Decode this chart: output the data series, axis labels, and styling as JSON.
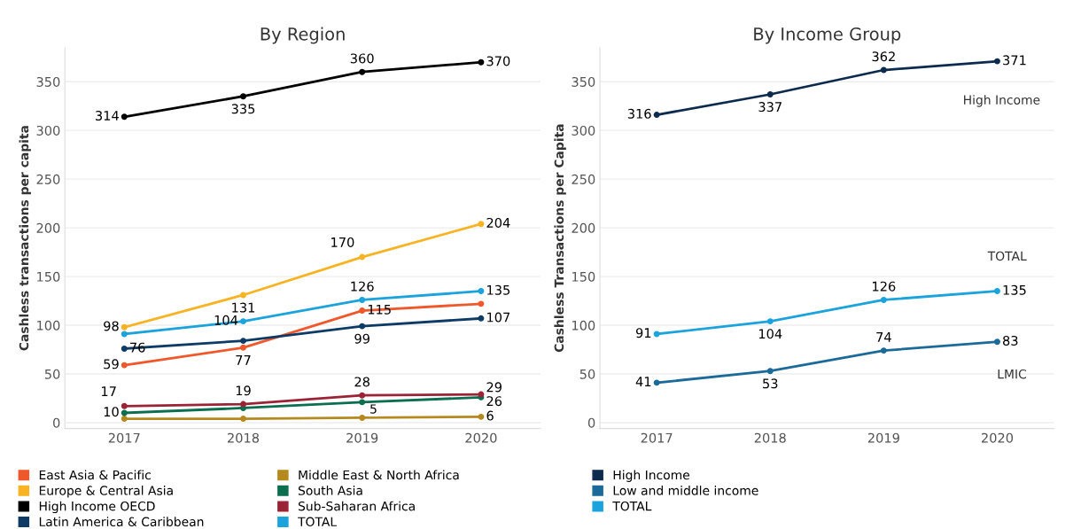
{
  "chart_data": [
    {
      "type": "line",
      "title": "By Region",
      "ylabel": "Cashless transactions per capita",
      "categories": [
        "2017",
        "2018",
        "2019",
        "2020"
      ],
      "ylim": [
        -6,
        385
      ],
      "yticks": [
        0,
        50,
        100,
        150,
        200,
        250,
        300,
        350
      ],
      "grid": "y",
      "legend": "bottom",
      "marker": "circle",
      "line_style": "solid",
      "series": [
        {
          "name": "East Asia & Pacific",
          "color": "#f0582b",
          "values": [
            59,
            77,
            115,
            122
          ],
          "value_labels": [
            "59",
            "77",
            "115",
            null
          ]
        },
        {
          "name": "Europe & Central Asia",
          "color": "#f8b323",
          "values": [
            98,
            131,
            170,
            204
          ],
          "value_labels": [
            "98",
            "131",
            "170",
            "204"
          ]
        },
        {
          "name": "High Income OECD",
          "color": "#000000",
          "values": [
            314,
            335,
            360,
            370
          ],
          "value_labels": [
            "314",
            "335",
            "360",
            "370"
          ]
        },
        {
          "name": "Latin America & Caribbean",
          "color": "#0d3b66",
          "values": [
            76,
            84,
            99,
            107
          ],
          "value_labels": [
            "76",
            null,
            "99",
            "107"
          ]
        },
        {
          "name": "Middle East & North Africa",
          "color": "#b5891e",
          "values": [
            4,
            4,
            5,
            6
          ],
          "value_labels": [
            null,
            null,
            "5",
            "6"
          ]
        },
        {
          "name": "South Asia",
          "color": "#0b6e4f",
          "values": [
            10,
            15,
            21,
            26
          ],
          "value_labels": [
            "10",
            null,
            null,
            "26"
          ]
        },
        {
          "name": "Sub-Saharan Africa",
          "color": "#9b2335",
          "values": [
            17,
            19,
            28,
            29
          ],
          "value_labels": [
            "17",
            "19",
            "28",
            "29"
          ]
        },
        {
          "name": "TOTAL",
          "color": "#1aa3dc",
          "values": [
            91,
            104,
            126,
            135
          ],
          "value_labels": [
            null,
            "104",
            "126",
            "135"
          ]
        }
      ]
    },
    {
      "type": "line",
      "title": "By Income Group",
      "ylabel": "Cashless Transactions per Capita",
      "categories": [
        "2017",
        "2018",
        "2019",
        "2020"
      ],
      "ylim": [
        -6,
        385
      ],
      "yticks": [
        0,
        50,
        100,
        150,
        200,
        250,
        300,
        350
      ],
      "grid": "y",
      "legend": "bottom",
      "marker": "circle",
      "line_style": "solid",
      "series": [
        {
          "name": "High Income",
          "color": "#0d2b4e",
          "values": [
            316,
            337,
            362,
            371
          ],
          "value_labels": [
            "316",
            "337",
            "362",
            "371"
          ]
        },
        {
          "name": "Low and middle income",
          "color": "#1b6a99",
          "values": [
            41,
            53,
            74,
            83
          ],
          "value_labels": [
            "41",
            "53",
            "74",
            "83"
          ]
        },
        {
          "name": "TOTAL",
          "color": "#1aa3dc",
          "values": [
            91,
            104,
            126,
            135
          ],
          "value_labels": [
            "91",
            "104",
            "126",
            "135"
          ]
        }
      ],
      "annotations": [
        "High Income",
        "TOTAL",
        "LMIC"
      ]
    }
  ]
}
